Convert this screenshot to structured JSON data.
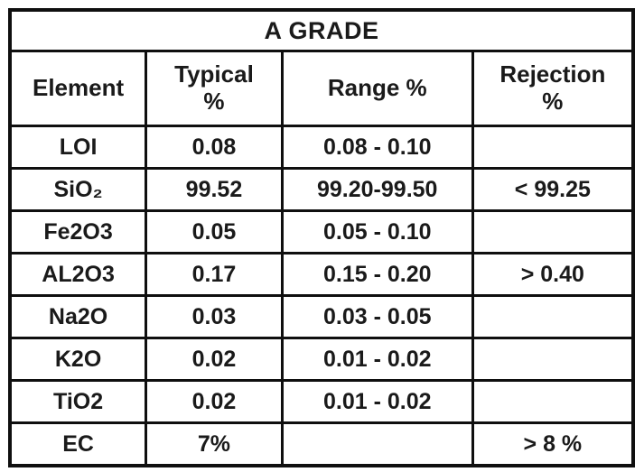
{
  "table": {
    "title": "A GRADE",
    "columns": [
      "Element",
      "Typical\n%",
      "Range %",
      "Rejection\n%"
    ],
    "rows": [
      {
        "element": "LOI",
        "typical": "0.08",
        "range": "0.08 - 0.10",
        "rejection": ""
      },
      {
        "element": "SiO₂",
        "typical": "99.52",
        "range": "99.20-99.50",
        "rejection": "< 99.25"
      },
      {
        "element": "Fe2O3",
        "typical": "0.05",
        "range": "0.05 - 0.10",
        "rejection": ""
      },
      {
        "element": "AL2O3",
        "typical": "0.17",
        "range": "0.15 - 0.20",
        "rejection": "> 0.40"
      },
      {
        "element": "Na2O",
        "typical": "0.03",
        "range": "0.03 - 0.05",
        "rejection": ""
      },
      {
        "element": "K2O",
        "typical": "0.02",
        "range": "0.01 - 0.02",
        "rejection": ""
      },
      {
        "element": "TiO2",
        "typical": "0.02",
        "range": "0.01 - 0.02",
        "rejection": ""
      },
      {
        "element": "EC",
        "typical": "7%",
        "range": "",
        "rejection": "> 8 %"
      }
    ],
    "colors": {
      "border": "#0f0f0f",
      "text": "#1a1a1a",
      "muted_element_text": "#74747e",
      "background": "#ffffff"
    }
  }
}
